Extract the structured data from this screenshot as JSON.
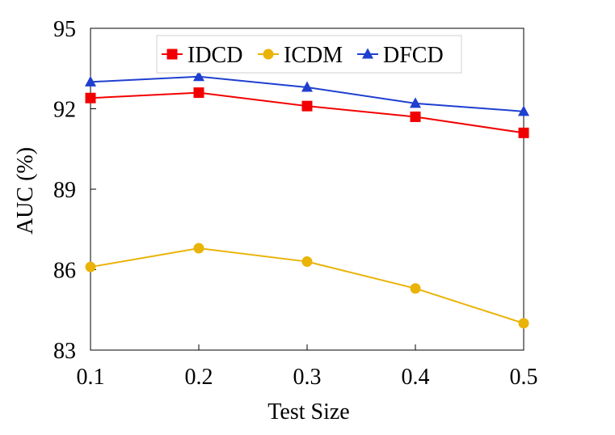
{
  "chart_data": {
    "type": "line",
    "title": "",
    "xlabel": "Test Size",
    "ylabel": "AUC (%)",
    "categories": [
      "0.1",
      "0.2",
      "0.3",
      "0.4",
      "0.5"
    ],
    "x": [
      0.1,
      0.2,
      0.3,
      0.4,
      0.5
    ],
    "xlim": [
      0.1,
      0.5
    ],
    "ylim": [
      83,
      95
    ],
    "yticks": [
      83,
      86,
      89,
      92,
      95
    ],
    "ytick_labels": [
      "83",
      "86",
      "89",
      "92",
      "95"
    ],
    "grid": false,
    "legend_position": "top-center",
    "series": [
      {
        "name": "IDCD",
        "marker": "square",
        "color": "#f20000",
        "values": [
          92.4,
          92.6,
          92.1,
          91.7,
          91.1
        ]
      },
      {
        "name": "ICDM",
        "marker": "circle",
        "color": "#eab308",
        "values": [
          86.1,
          86.8,
          86.3,
          85.3,
          84.0
        ]
      },
      {
        "name": "DFCD",
        "marker": "triangle",
        "color": "#1f3fd0",
        "values": [
          93.0,
          93.2,
          92.8,
          92.2,
          91.9
        ]
      }
    ]
  }
}
